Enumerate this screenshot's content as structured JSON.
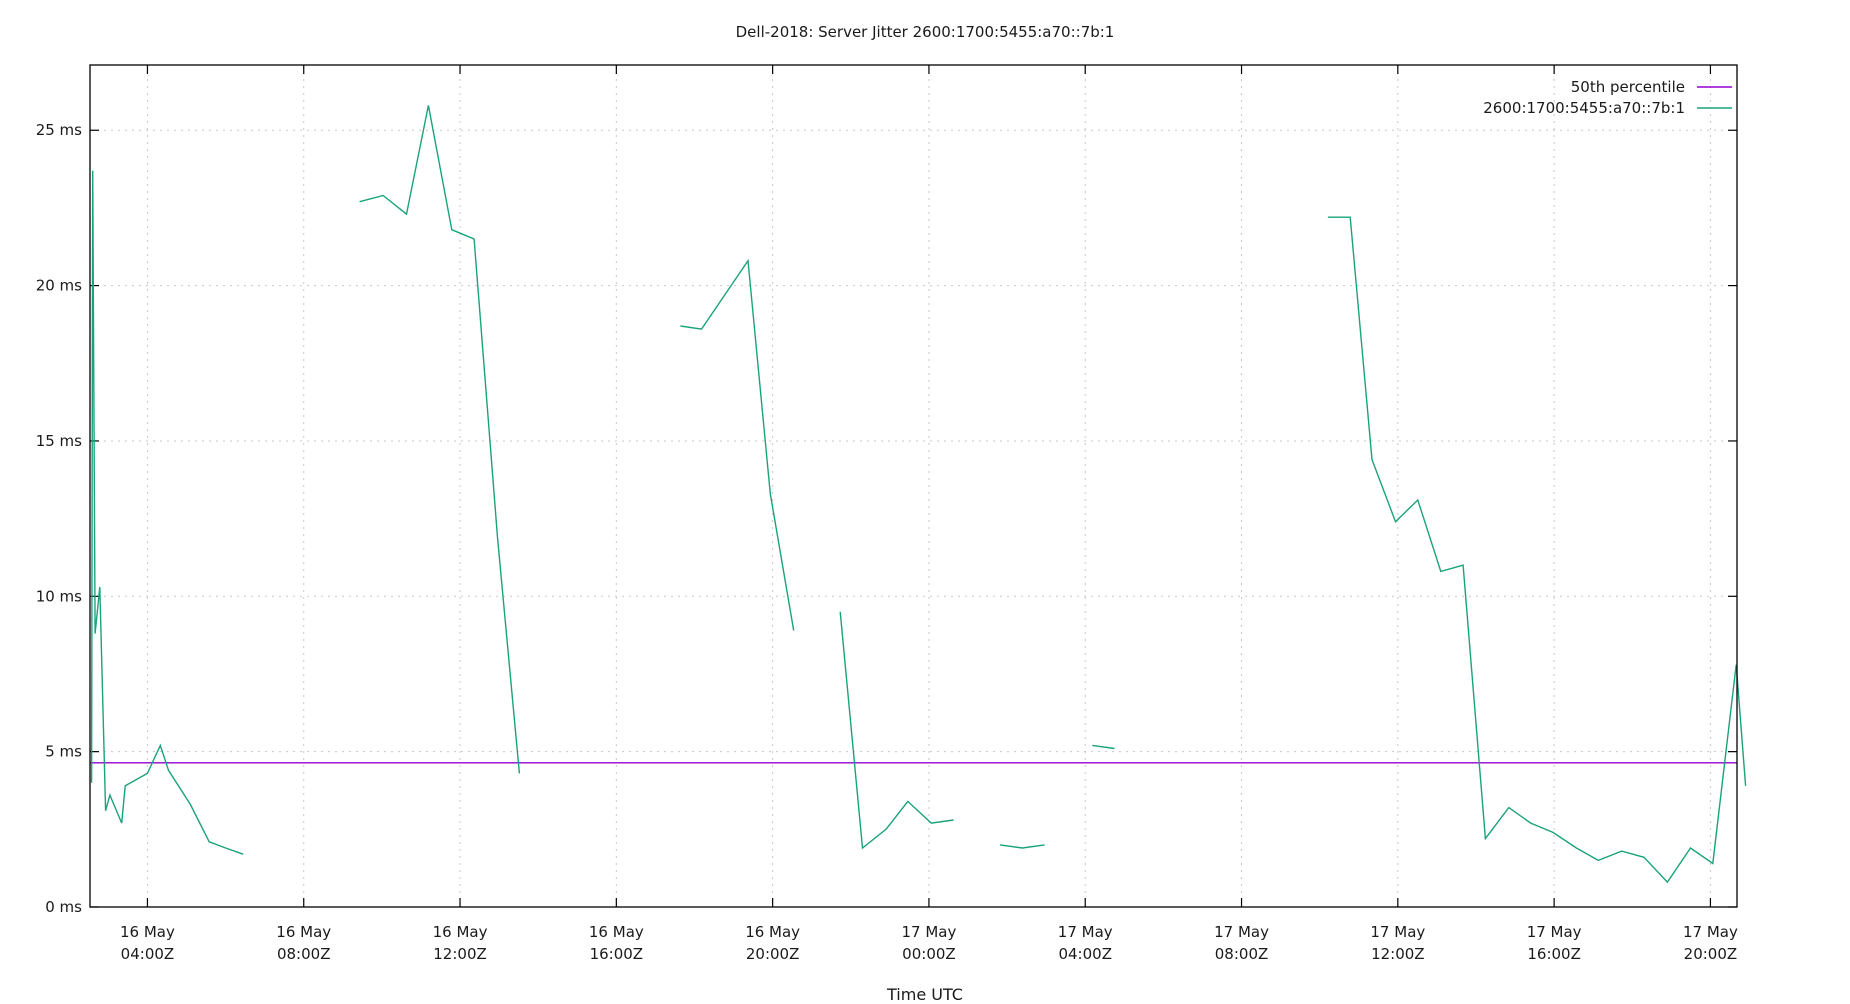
{
  "chart_data": {
    "type": "line",
    "title": "Dell-2018: Server Jitter 2600:1700:5455:a70::7b:1",
    "xlabel": "Time UTC",
    "ylabel": "",
    "ylim": [
      0,
      27.1
    ],
    "xlim_hours_since_16May_00Z": [
      2.53,
      44.68
    ],
    "grid": true,
    "legend_position": "top-right",
    "y_ticks": [
      {
        "value": 0,
        "label": "0 ms"
      },
      {
        "value": 5,
        "label": "5 ms"
      },
      {
        "value": 10,
        "label": "10 ms"
      },
      {
        "value": 15,
        "label": "15 ms"
      },
      {
        "value": 20,
        "label": "20 ms"
      },
      {
        "value": 25,
        "label": "25 ms"
      }
    ],
    "x_ticks": [
      {
        "hour": 4,
        "line1": "16 May",
        "line2": "04:00Z"
      },
      {
        "hour": 8,
        "line1": "16 May",
        "line2": "08:00Z"
      },
      {
        "hour": 12,
        "line1": "16 May",
        "line2": "12:00Z"
      },
      {
        "hour": 16,
        "line1": "16 May",
        "line2": "16:00Z"
      },
      {
        "hour": 20,
        "line1": "16 May",
        "line2": "20:00Z"
      },
      {
        "hour": 24,
        "line1": "17 May",
        "line2": "00:00Z"
      },
      {
        "hour": 28,
        "line1": "17 May",
        "line2": "04:00Z"
      },
      {
        "hour": 32,
        "line1": "17 May",
        "line2": "08:00Z"
      },
      {
        "hour": 36,
        "line1": "17 May",
        "line2": "12:00Z"
      },
      {
        "hour": 40,
        "line1": "17 May",
        "line2": "16:00Z"
      },
      {
        "hour": 44,
        "line1": "17 May",
        "line2": "20:00Z"
      }
    ],
    "series": [
      {
        "name": "50th percentile",
        "color": "#9400d3",
        "value": 4.64
      },
      {
        "name": "2600:1700:5455:a70::7b:1",
        "color": "#1aa37a",
        "segments": [
          [
            [
              2.57,
              4.0
            ],
            [
              2.6,
              23.7
            ],
            [
              2.66,
              8.8
            ],
            [
              2.78,
              10.3
            ],
            [
              2.93,
              3.1
            ],
            [
              3.04,
              3.6
            ],
            [
              3.34,
              2.7
            ],
            [
              3.43,
              3.9
            ],
            [
              4.0,
              4.3
            ],
            [
              4.33,
              5.2
            ],
            [
              4.54,
              4.4
            ],
            [
              5.1,
              3.3
            ],
            [
              5.58,
              2.1
            ],
            [
              6.0,
              1.9
            ],
            [
              6.45,
              1.7
            ]
          ],
          [
            [
              9.43,
              22.7
            ],
            [
              10.03,
              22.9
            ],
            [
              10.63,
              22.3
            ],
            [
              11.19,
              25.8
            ],
            [
              11.79,
              21.8
            ],
            [
              12.36,
              21.5
            ],
            [
              12.96,
              11.9
            ],
            [
              13.52,
              4.3
            ]
          ],
          [
            [
              17.64,
              18.7
            ],
            [
              18.18,
              18.6
            ],
            [
              19.37,
              20.8
            ],
            [
              19.94,
              13.3
            ],
            [
              20.54,
              8.9
            ]
          ],
          [
            [
              21.73,
              9.5
            ],
            [
              22.3,
              1.9
            ],
            [
              22.9,
              2.5
            ],
            [
              23.46,
              3.4
            ],
            [
              24.06,
              2.7
            ],
            [
              24.63,
              2.8
            ]
          ],
          [
            [
              25.82,
              2.0
            ],
            [
              26.39,
              1.9
            ],
            [
              26.96,
              2.0
            ]
          ],
          [
            [
              28.18,
              5.2
            ],
            [
              28.75,
              5.1
            ]
          ],
          [
            [
              34.21,
              22.2
            ],
            [
              34.78,
              22.2
            ],
            [
              35.34,
              14.4
            ],
            [
              35.94,
              12.4
            ],
            [
              36.51,
              13.1
            ],
            [
              37.1,
              10.8
            ],
            [
              37.67,
              11.0
            ],
            [
              38.24,
              2.2
            ],
            [
              38.84,
              3.2
            ],
            [
              39.4,
              2.7
            ],
            [
              39.97,
              2.4
            ],
            [
              40.57,
              1.9
            ],
            [
              41.13,
              1.5
            ],
            [
              41.73,
              1.8
            ],
            [
              42.3,
              1.6
            ],
            [
              42.9,
              0.8
            ],
            [
              43.49,
              1.9
            ],
            [
              44.06,
              1.4
            ],
            [
              44.66,
              7.8
            ],
            [
              44.9,
              3.9
            ]
          ]
        ]
      }
    ]
  },
  "legend": {
    "items": [
      {
        "label": "50th percentile",
        "color": "#9400d3"
      },
      {
        "label": "2600:1700:5455:a70::7b:1",
        "color": "#1aa37a"
      }
    ]
  }
}
